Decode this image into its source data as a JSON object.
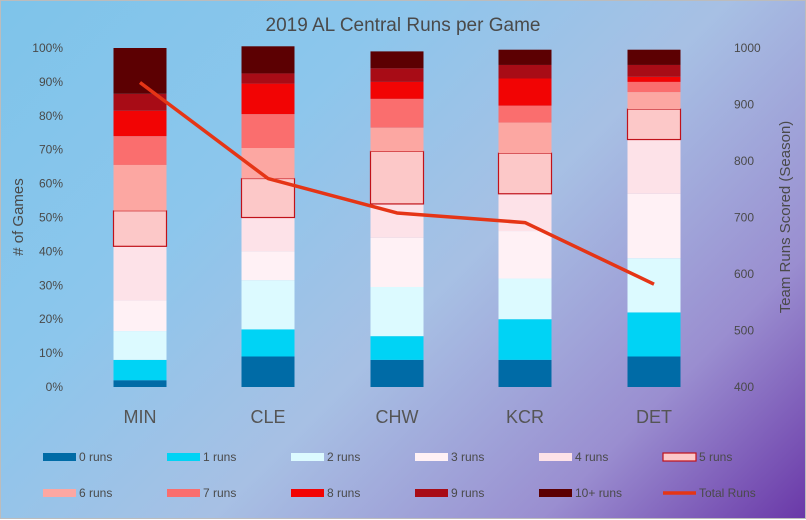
{
  "chart_data": {
    "type": "bar",
    "stacked": true,
    "title": "2019 AL Central Runs per Game",
    "categories": [
      "MIN",
      "CLE",
      "CHW",
      "KCR",
      "DET"
    ],
    "ylabel": "# of Games",
    "y2label": "Team Runs Scored (Season)",
    "ylim": [
      0,
      100
    ],
    "y2lim": [
      400,
      1000
    ],
    "y_ticks": [
      "0%",
      "10%",
      "20%",
      "30%",
      "40%",
      "50%",
      "60%",
      "70%",
      "80%",
      "90%",
      "100%"
    ],
    "y2_ticks": [
      "400",
      "500",
      "600",
      "700",
      "800",
      "900",
      "1000"
    ],
    "series": [
      {
        "name": "0 runs",
        "color": "#006ba6",
        "values": [
          2,
          9,
          8,
          8,
          9
        ]
      },
      {
        "name": "1 runs",
        "color": "#00d3f5",
        "values": [
          6,
          8,
          7,
          12,
          13
        ]
      },
      {
        "name": "2 runs",
        "color": "#dcfaff",
        "values": [
          8.5,
          14.5,
          14.5,
          12,
          16
        ]
      },
      {
        "name": "3 runs",
        "color": "#fff1f5",
        "values": [
          9,
          8.5,
          14.5,
          14,
          19
        ]
      },
      {
        "name": "4 runs",
        "color": "#fde2e8",
        "values": [
          16,
          10,
          10,
          11,
          16
        ]
      },
      {
        "name": "5 runs",
        "color": "#fcc8c8",
        "values": [
          10.5,
          11.5,
          15.5,
          12,
          9
        ],
        "outlined": true
      },
      {
        "name": "6 runs",
        "color": "#fca7a2",
        "values": [
          13.5,
          9,
          7,
          9,
          5
        ]
      },
      {
        "name": "7 runs",
        "color": "#fa6e6e",
        "values": [
          8.5,
          10,
          8.5,
          5,
          3
        ]
      },
      {
        "name": "8 runs",
        "color": "#f20404",
        "values": [
          7.5,
          9,
          5,
          8,
          1.5
        ]
      },
      {
        "name": "9 runs",
        "color": "#a80c16",
        "values": [
          5,
          3,
          4,
          4,
          3.5
        ]
      },
      {
        "name": "10+ runs",
        "color": "#5c0002",
        "values": [
          13.5,
          8,
          5,
          4.5,
          4.5
        ]
      }
    ],
    "line": {
      "name": "Total Runs",
      "color": "#e53516",
      "axis": "y2",
      "values": [
        939,
        769,
        708,
        691,
        582
      ]
    }
  }
}
